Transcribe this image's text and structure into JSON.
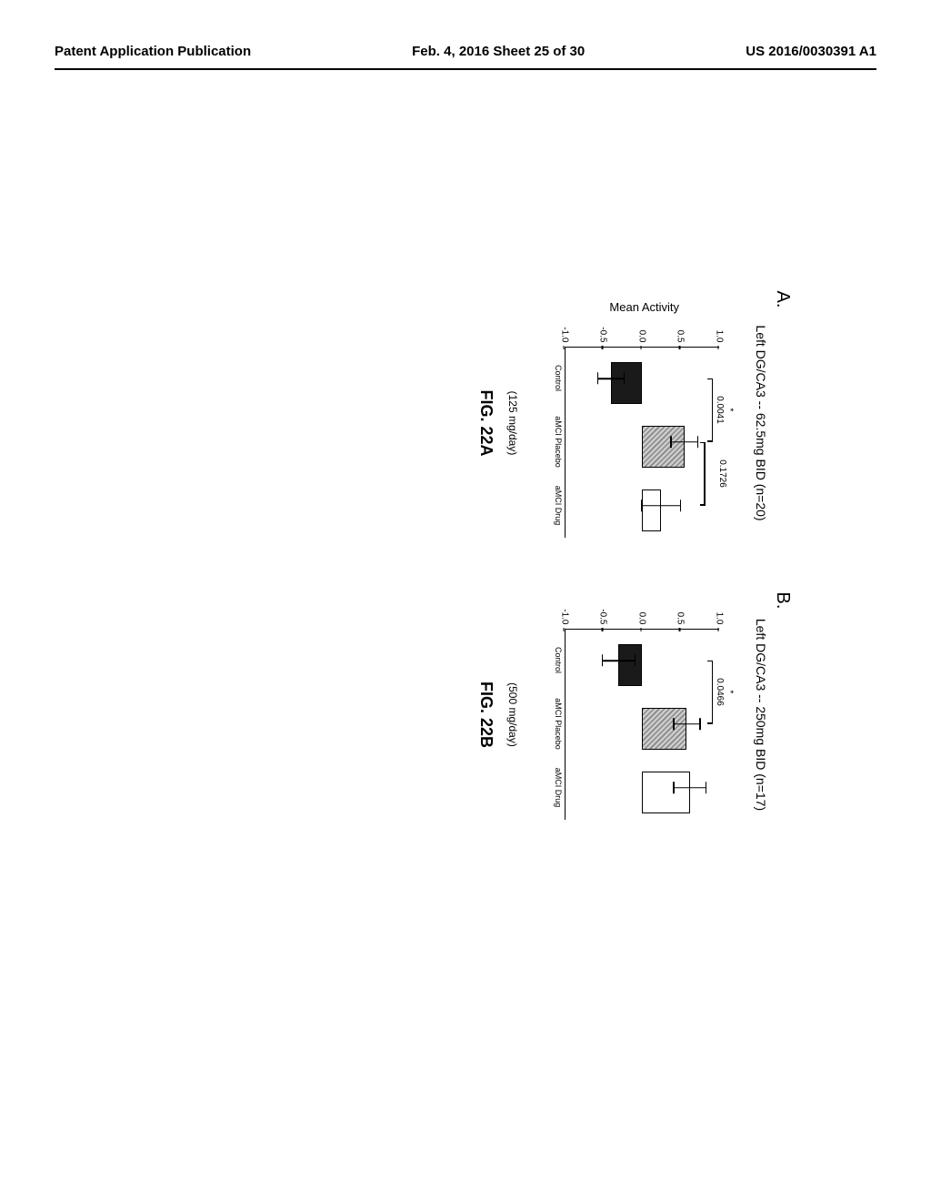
{
  "header": {
    "left": "Patent Application Publication",
    "middle": "Feb. 4, 2016  Sheet 25 of 30",
    "right": "US 2016/0030391 A1"
  },
  "figure": {
    "ylabel": "Mean Activity",
    "ylim": [
      -1.0,
      1.0
    ],
    "yticks": [
      -1.0,
      -0.5,
      0.0,
      0.5,
      1.0
    ],
    "ytick_labels": [
      "-1.0",
      "-0.5",
      "0.0",
      "0.5",
      "1.0"
    ],
    "categories": [
      "Control",
      "aMCI Placebo",
      "aMCI Drug"
    ],
    "bar_colors": [
      "#1a1a1a",
      "hatched",
      "#ffffff"
    ],
    "bar_border": "#000000",
    "panels": [
      {
        "panel_label": "A.",
        "title": "Left DG/CA3 -- 62.5mg BID (n=20)",
        "dose": "(125 mg/day)",
        "fig": "FIG. 22A",
        "values": [
          -0.4,
          0.55,
          0.25
        ],
        "errors": [
          0.18,
          0.18,
          0.26
        ],
        "sig": [
          {
            "from": 0,
            "to": 1,
            "label": "0.0041",
            "star": "*",
            "y": 0.92
          },
          {
            "from": 1,
            "to": 2,
            "label": "0.1726",
            "star": "",
            "y": 0.82
          }
        ]
      },
      {
        "panel_label": "B.",
        "title": "Left DG/CA3 -- 250mg BID (n=17)",
        "dose": "(500 mg/day)",
        "fig": "FIG. 22B",
        "values": [
          -0.3,
          0.58,
          0.62
        ],
        "errors": [
          0.22,
          0.18,
          0.22
        ],
        "sig": [
          {
            "from": 0,
            "to": 1,
            "label": "0.0466",
            "star": "*",
            "y": 0.92
          }
        ]
      }
    ]
  }
}
